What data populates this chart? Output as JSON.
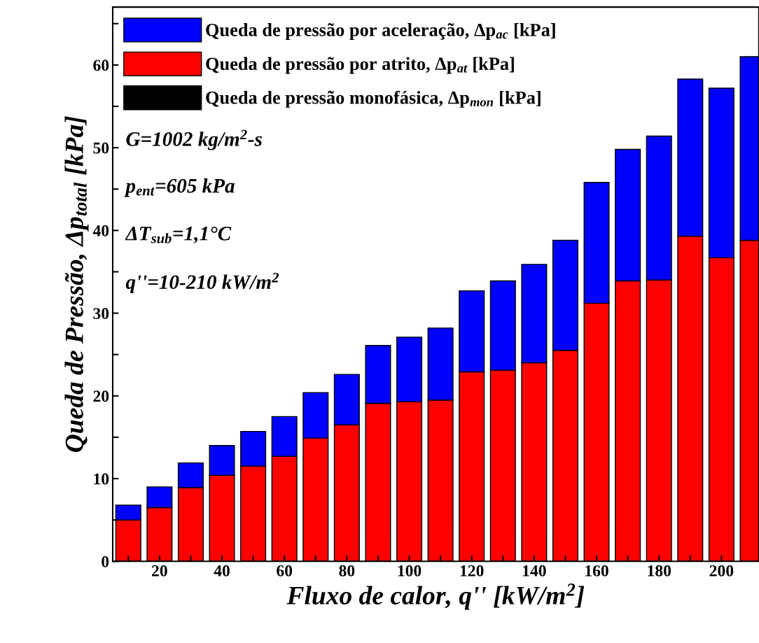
{
  "chart_data": {
    "type": "bar",
    "stacked": true,
    "xlabel": "Fluxo de calor, q'' [kW/m$^{2}$]",
    "ylabel": "Queda de Pressão, Δp$_{total}$ [kPa]",
    "x": [
      10,
      20,
      30,
      40,
      50,
      60,
      70,
      80,
      90,
      100,
      110,
      120,
      130,
      140,
      150,
      160,
      170,
      180,
      190,
      200,
      210
    ],
    "series": [
      {
        "name": "Queda de pressão monofásica, Δp$_{mon}$ [kPa]",
        "color": "#000000",
        "values": [
          null,
          null,
          null,
          null,
          null,
          null,
          null,
          null,
          null,
          null,
          null,
          null,
          null,
          null,
          null,
          null,
          null,
          null,
          null,
          null,
          null
        ]
      },
      {
        "name": "Queda de pressão por atrito, Δp$_{at}$ [kPa]",
        "color": "#ff0000",
        "values": [
          5.0,
          6.5,
          8.9,
          10.4,
          11.5,
          12.7,
          14.9,
          16.5,
          19.1,
          19.3,
          19.5,
          22.9,
          23.1,
          24.0,
          25.5,
          31.2,
          33.9,
          34.0,
          39.3,
          36.7,
          38.8
        ]
      },
      {
        "name": "Queda de pressão por aceleração, Δp$_{ac}$ [kPa]",
        "color": "#0000ff",
        "values": [
          1.8,
          2.5,
          3.0,
          3.6,
          4.2,
          4.8,
          5.5,
          6.1,
          7.0,
          7.8,
          8.7,
          9.8,
          10.8,
          11.9,
          13.3,
          14.6,
          15.9,
          17.4,
          19.0,
          20.5,
          22.2
        ]
      }
    ],
    "xlim": [
      5,
      212
    ],
    "ylim": [
      0,
      67
    ],
    "xticks": [
      {
        "value": 10,
        "label": null
      },
      20,
      {
        "value": 30,
        "label": null
      },
      40,
      {
        "value": 50,
        "label": null
      },
      60,
      {
        "value": 70,
        "label": null
      },
      80,
      {
        "value": 90,
        "label": null
      },
      100,
      {
        "value": 110,
        "label": null
      },
      120,
      {
        "value": 130,
        "label": null
      },
      140,
      {
        "value": 150,
        "label": null
      },
      160,
      {
        "value": 170,
        "label": null
      },
      180,
      {
        "value": 190,
        "label": null
      },
      200
    ],
    "yticks": [
      0,
      {
        "value": 5,
        "label": null
      },
      10,
      {
        "value": 15,
        "label": null
      },
      20,
      {
        "value": 25,
        "label": null
      },
      30,
      {
        "value": 35,
        "label": null
      },
      40,
      {
        "value": 45,
        "label": null
      },
      50,
      {
        "value": 55,
        "label": null
      },
      60,
      {
        "value": 65,
        "label": null
      }
    ],
    "annotations": [
      "G=1002 kg/m$^{2}$-s",
      "p$_{ent}$=605 kPa",
      "ΔT$_{sub}$=1,1°C",
      "q''=10-210 kW/m$^{2}$"
    ],
    "legend": "top left",
    "grid": false
  }
}
